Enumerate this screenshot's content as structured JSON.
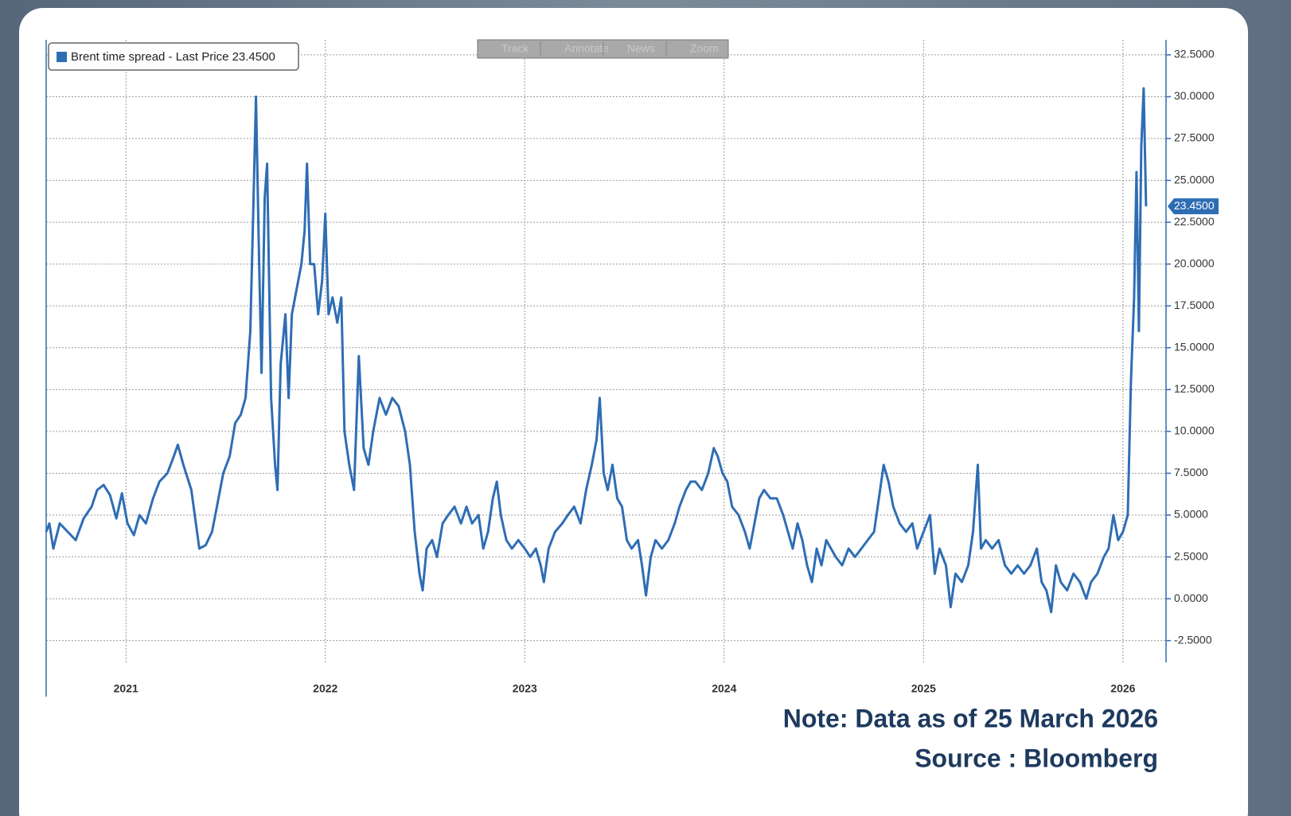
{
  "chart_data": {
    "type": "line",
    "legend": "Brent time spread - Last Price 23.4500",
    "last_price_label": "23.4500",
    "toolbar": [
      "Track",
      "Annotate",
      "News",
      "Zoom"
    ],
    "note": "Note: Data as of 25 March 2026",
    "source": "Source : Bloomberg",
    "x": [
      2020.6,
      2020.616,
      2020.636,
      2020.668,
      2020.708,
      2020.748,
      2020.788,
      2020.828,
      2020.856,
      2020.888,
      2020.92,
      2020.952,
      2020.98,
      2021.008,
      2021.04,
      2021.068,
      2021.1,
      2021.136,
      2021.168,
      2021.208,
      2021.24,
      2021.26,
      2021.288,
      2021.328,
      2021.368,
      2021.4,
      2021.432,
      2021.456,
      2021.488,
      2021.52,
      2021.548,
      2021.576,
      2021.6,
      2021.624,
      2021.64,
      2021.652,
      2021.668,
      2021.68,
      2021.696,
      2021.708,
      2021.728,
      2021.748,
      2021.76,
      2021.776,
      2021.8,
      2021.816,
      2021.832,
      2021.856,
      2021.88,
      2021.896,
      2021.908,
      2021.924,
      2021.944,
      2021.964,
      2021.984,
      2022.0,
      2022.016,
      2022.036,
      2022.06,
      2022.08,
      2022.096,
      2022.12,
      2022.144,
      2022.168,
      2022.192,
      2022.216,
      2022.24,
      2022.272,
      2022.304,
      2022.336,
      2022.368,
      2022.4,
      2022.424,
      2022.448,
      2022.472,
      2022.488,
      2022.508,
      2022.536,
      2022.56,
      2022.588,
      2022.616,
      2022.648,
      2022.68,
      2022.708,
      2022.736,
      2022.768,
      2022.792,
      2022.816,
      2022.84,
      2022.86,
      2022.88,
      2022.908,
      2022.936,
      2022.968,
      2023.0,
      2023.028,
      2023.056,
      2023.08,
      2023.096,
      2023.12,
      2023.152,
      2023.188,
      2023.216,
      2023.248,
      2023.28,
      2023.308,
      2023.336,
      2023.36,
      2023.376,
      2023.396,
      2023.416,
      2023.44,
      2023.464,
      2023.488,
      2023.512,
      2023.536,
      2023.568,
      2023.588,
      2023.608,
      2023.632,
      2023.656,
      2023.688,
      2023.72,
      2023.752,
      2023.776,
      2023.808,
      2023.832,
      2023.856,
      2023.888,
      2023.92,
      2023.948,
      2023.968,
      2023.992,
      2024.016,
      2024.04,
      2024.072,
      2024.104,
      2024.128,
      2024.152,
      2024.176,
      2024.2,
      2024.232,
      2024.264,
      2024.296,
      2024.32,
      2024.344,
      2024.368,
      2024.392,
      2024.416,
      2024.44,
      2024.464,
      2024.488,
      2024.512,
      2024.536,
      2024.56,
      2024.592,
      2024.624,
      2024.656,
      2024.688,
      2024.72,
      2024.752,
      2024.776,
      2024.8,
      2024.824,
      2024.848,
      2024.88,
      2024.912,
      2024.944,
      2024.968,
      2025.0,
      2025.032,
      2025.056,
      2025.08,
      2025.112,
      2025.136,
      2025.16,
      2025.192,
      2025.224,
      2025.248,
      2025.272,
      2025.288,
      2025.312,
      2025.344,
      2025.376,
      2025.408,
      2025.44,
      2025.472,
      2025.504,
      2025.536,
      2025.568,
      2025.592,
      2025.616,
      2025.64,
      2025.664,
      2025.688,
      2025.72,
      2025.752,
      2025.784,
      2025.816,
      2025.84,
      2025.872,
      2025.904,
      2025.928,
      2025.952,
      2025.976,
      2026.0,
      2026.024,
      2026.04,
      2026.056,
      2026.068,
      2026.08,
      2026.092,
      2026.104,
      2026.116
    ],
    "series": [
      {
        "name": "Brent time spread",
        "color": "#2e6db4",
        "values": [
          4.0,
          4.5,
          3.0,
          4.5,
          4.0,
          3.5,
          4.8,
          5.5,
          6.5,
          6.8,
          6.2,
          4.8,
          6.3,
          4.5,
          3.8,
          5.0,
          4.5,
          6.0,
          7.0,
          7.5,
          8.5,
          9.2,
          8.0,
          6.5,
          3.0,
          3.2,
          4.0,
          5.5,
          7.5,
          8.5,
          10.5,
          11.0,
          12.0,
          16.0,
          24.0,
          30.0,
          20.0,
          13.5,
          24.0,
          26.0,
          12.0,
          8.0,
          6.5,
          14.0,
          17.0,
          12.0,
          17.0,
          18.5,
          20.0,
          22.0,
          26.0,
          20.0,
          20.0,
          17.0,
          19.0,
          23.0,
          17.0,
          18.0,
          16.5,
          18.0,
          10.0,
          8.0,
          6.5,
          14.5,
          9.0,
          8.0,
          10.0,
          12.0,
          11.0,
          12.0,
          11.5,
          10.0,
          8.0,
          4.0,
          1.5,
          0.5,
          3.0,
          3.5,
          2.5,
          4.5,
          5.0,
          5.5,
          4.5,
          5.5,
          4.5,
          5.0,
          3.0,
          4.0,
          6.0,
          7.0,
          5.0,
          3.5,
          3.0,
          3.5,
          3.0,
          2.5,
          3.0,
          2.0,
          1.0,
          3.0,
          4.0,
          4.5,
          5.0,
          5.5,
          4.5,
          6.5,
          8.0,
          9.5,
          12.0,
          7.5,
          6.5,
          8.0,
          6.0,
          5.5,
          3.5,
          3.0,
          3.5,
          2.0,
          0.2,
          2.5,
          3.5,
          3.0,
          3.5,
          4.5,
          5.5,
          6.5,
          7.0,
          7.0,
          6.5,
          7.5,
          9.0,
          8.5,
          7.5,
          7.0,
          5.5,
          5.0,
          4.0,
          3.0,
          4.5,
          6.0,
          6.5,
          6.0,
          6.0,
          5.0,
          4.0,
          3.0,
          4.5,
          3.5,
          2.0,
          1.0,
          3.0,
          2.0,
          3.5,
          3.0,
          2.5,
          2.0,
          3.0,
          2.5,
          3.0,
          3.5,
          4.0,
          6.0,
          8.0,
          7.0,
          5.5,
          4.5,
          4.0,
          4.5,
          3.0,
          4.0,
          5.0,
          1.5,
          3.0,
          2.0,
          -0.5,
          1.5,
          1.0,
          2.0,
          4.0,
          8.0,
          3.0,
          3.5,
          3.0,
          3.5,
          2.0,
          1.5,
          2.0,
          1.5,
          2.0,
          3.0,
          1.0,
          0.5,
          -0.8,
          2.0,
          1.0,
          0.5,
          1.5,
          1.0,
          0.0,
          1.0,
          1.5,
          2.5,
          3.0,
          5.0,
          3.5,
          4.0,
          5.0,
          13.0,
          18.0,
          25.5,
          16.0,
          27.0,
          30.5,
          23.45
        ]
      }
    ],
    "xlim": [
      2020.6,
      2026.216
    ],
    "xticks": [
      2021,
      2022,
      2023,
      2024,
      2025,
      2026
    ],
    "ylim": [
      -3.8,
      33.4
    ],
    "yticks": [
      {
        "value": -2.5,
        "label": "-2.5000"
      },
      {
        "value": 0,
        "label": "0.0000"
      },
      {
        "value": 2.5,
        "label": "2.5000"
      },
      {
        "value": 5,
        "label": "5.0000"
      },
      {
        "value": 7.5,
        "label": "7.5000"
      },
      {
        "value": 10,
        "label": "10.0000"
      },
      {
        "value": 12.5,
        "label": "12.5000"
      },
      {
        "value": 15,
        "label": "15.0000"
      },
      {
        "value": 17.5,
        "label": "17.5000"
      },
      {
        "value": 20,
        "label": "20.0000"
      },
      {
        "value": 22.5,
        "label": "22.5000"
      },
      {
        "value": 25,
        "label": "25.0000"
      },
      {
        "value": 27.5,
        "label": "27.5000"
      },
      {
        "value": 30,
        "label": "30.0000"
      },
      {
        "value": 32.5,
        "label": "32.5000"
      }
    ],
    "grid": true
  }
}
